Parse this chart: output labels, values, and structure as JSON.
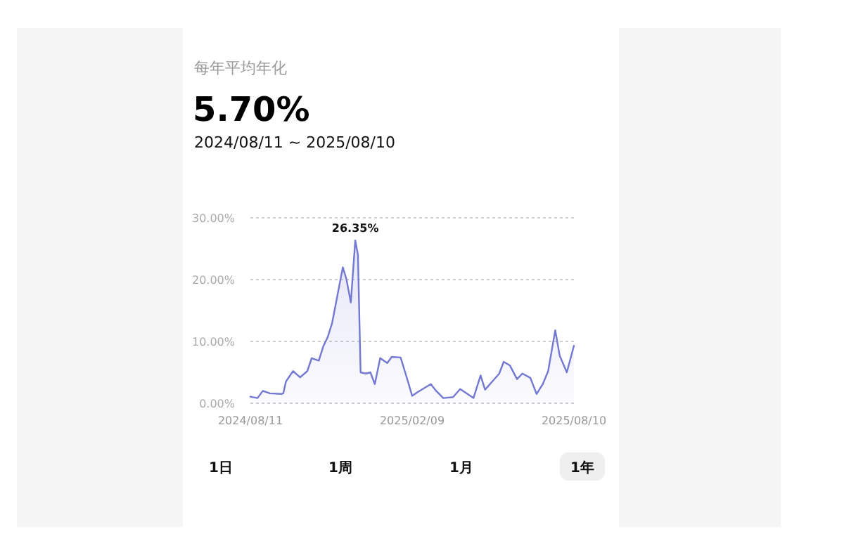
{
  "chart_data": {
    "type": "area",
    "title": "每年平均年化",
    "subtitle": "5.70%",
    "annotations": [
      "2024/08/11 ~ 2025/08/10",
      "1日",
      "1周",
      "1月",
      "1年",
      {
        "text": "26.35%",
        "x": "2024-12-07",
        "y": 26.35
      }
    ],
    "x": [
      "2024-08-11",
      "2024-08-19",
      "2024-08-25",
      "2024-09-02",
      "2024-09-15",
      "2024-09-17",
      "2024-09-20",
      "2024-09-28",
      "2024-10-06",
      "2024-10-14",
      "2024-10-19",
      "2024-10-27",
      "2024-11-01",
      "2024-11-06",
      "2024-11-11",
      "2024-11-17",
      "2024-11-23",
      "2024-11-27",
      "2024-12-02",
      "2024-12-07",
      "2024-12-10",
      "2024-12-13",
      "2024-12-19",
      "2024-12-24",
      "2024-12-29",
      "2025-01-04",
      "2025-01-12",
      "2025-01-17",
      "2025-01-27",
      "2025-02-02",
      "2025-02-09",
      "2025-02-15",
      "2025-03-02",
      "2025-03-08",
      "2025-03-16",
      "2025-03-27",
      "2025-04-04",
      "2025-04-19",
      "2025-04-27",
      "2025-05-02",
      "2025-05-10",
      "2025-05-18",
      "2025-05-23",
      "2025-05-30",
      "2025-06-07",
      "2025-06-13",
      "2025-06-22",
      "2025-06-29",
      "2025-07-06",
      "2025-07-12",
      "2025-07-20",
      "2025-07-25",
      "2025-08-02",
      "2025-08-10"
    ],
    "values": [
      1.07,
      0.84,
      2.0,
      1.6,
      1.5,
      1.6,
      3.5,
      5.2,
      4.2,
      5.2,
      7.3,
      6.9,
      9.2,
      10.7,
      13.0,
      17.5,
      22.0,
      20.1,
      16.3,
      26.35,
      24.0,
      5.0,
      4.8,
      5.0,
      3.1,
      7.3,
      6.5,
      7.5,
      7.4,
      4.6,
      1.2,
      1.8,
      3.1,
      2.0,
      0.84,
      1.0,
      2.3,
      0.84,
      4.5,
      2.2,
      3.5,
      4.8,
      6.7,
      6.1,
      3.9,
      4.8,
      4.1,
      1.5,
      3.1,
      5.2,
      11.8,
      7.7,
      5.0,
      9.3
    ],
    "color": "#7378d2",
    "xlim": [
      "2024-08-11",
      "2025-08-10"
    ],
    "xticks": [
      {
        "value": "2024-08-11",
        "label": "2024/08/11"
      },
      {
        "value": "2025-02-09",
        "label": "2025/02/09"
      },
      {
        "value": "2025-08-10",
        "label": "2025/08/10"
      }
    ],
    "ylim": [
      0,
      30
    ],
    "yticks": [
      {
        "value": 0,
        "label": "0.00%"
      },
      {
        "value": 10,
        "label": "10.00%"
      },
      {
        "value": 20,
        "label": "20.00%"
      },
      {
        "value": 30,
        "label": "30.00%"
      }
    ],
    "grid": "y",
    "marker": "none",
    "line_style": "solid"
  }
}
